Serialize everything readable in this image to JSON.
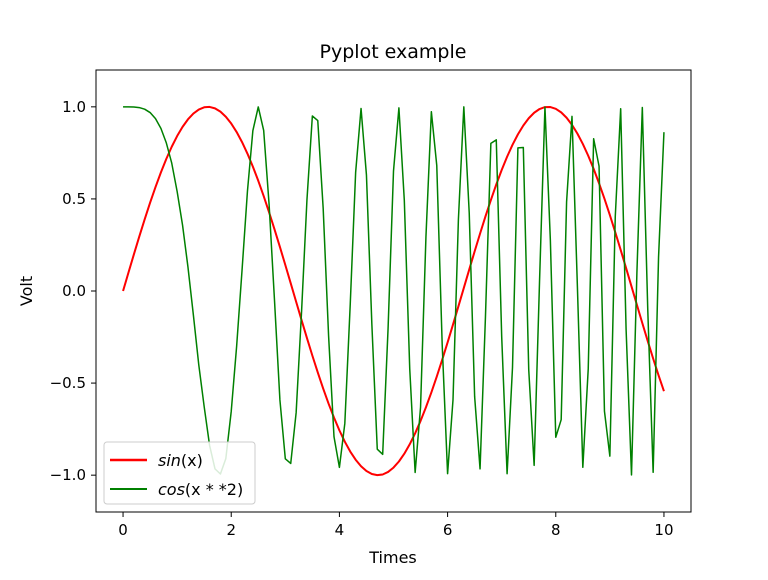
{
  "chart_data": {
    "type": "line",
    "title": "Pyplot example",
    "xlabel": "Times",
    "ylabel": "Volt",
    "xlim": [
      -0.5,
      10.5
    ],
    "ylim": [
      -1.2,
      1.2
    ],
    "x_ticks": [
      0,
      2,
      4,
      6,
      8,
      10
    ],
    "x_tick_labels": [
      "0",
      "2",
      "4",
      "6",
      "8",
      "10"
    ],
    "y_ticks": [
      -1.0,
      -0.5,
      0.0,
      0.5,
      1.0
    ],
    "y_tick_labels": [
      "−1.0",
      "−0.5",
      "0.0",
      "0.5",
      "1.0"
    ],
    "grid": false,
    "legend_position": "lower-left",
    "x": [
      0,
      0.1,
      0.2,
      0.3,
      0.4,
      0.5,
      0.6,
      0.7,
      0.8,
      0.9,
      1.0,
      1.1,
      1.2,
      1.3,
      1.4,
      1.5,
      1.6,
      1.7,
      1.8,
      1.9,
      2.0,
      2.1,
      2.2,
      2.3,
      2.4,
      2.5,
      2.6,
      2.7,
      2.8,
      2.9,
      3.0,
      3.1,
      3.2,
      3.3,
      3.4,
      3.5,
      3.6,
      3.7,
      3.8,
      3.9,
      4.0,
      4.1,
      4.2,
      4.3,
      4.4,
      4.5,
      4.6,
      4.7,
      4.8,
      4.9,
      5.0,
      5.1,
      5.2,
      5.3,
      5.4,
      5.5,
      5.6,
      5.7,
      5.8,
      5.9,
      6.0,
      6.1,
      6.2,
      6.3,
      6.4,
      6.5,
      6.6,
      6.7,
      6.8,
      6.9,
      7.0,
      7.1,
      7.2,
      7.3,
      7.4,
      7.5,
      7.6,
      7.7,
      7.8,
      7.9,
      8.0,
      8.1,
      8.2,
      8.3,
      8.4,
      8.5,
      8.6,
      8.7,
      8.8,
      8.9,
      9.0,
      9.1,
      9.2,
      9.3,
      9.4,
      9.5,
      9.6,
      9.7,
      9.8,
      9.9,
      10.0
    ],
    "series": [
      {
        "name": "sin(x)",
        "color": "#ff0000",
        "line_width": 2,
        "values": [
          0.0,
          0.0998,
          0.1987,
          0.2955,
          0.3894,
          0.4794,
          0.5646,
          0.6442,
          0.7174,
          0.7833,
          0.8415,
          0.8912,
          0.932,
          0.9636,
          0.9854,
          0.9975,
          0.9996,
          0.9917,
          0.9738,
          0.9463,
          0.9093,
          0.8632,
          0.8085,
          0.7457,
          0.6755,
          0.5985,
          0.5155,
          0.4274,
          0.335,
          0.2392,
          0.1411,
          0.0416,
          -0.0584,
          -0.1577,
          -0.2555,
          -0.3508,
          -0.4425,
          -0.5298,
          -0.6119,
          -0.6878,
          -0.7568,
          -0.8183,
          -0.8716,
          -0.9162,
          -0.9516,
          -0.9775,
          -0.9937,
          -0.9999,
          -0.9962,
          -0.9825,
          -0.9589,
          -0.9258,
          -0.8835,
          -0.8323,
          -0.7728,
          -0.7055,
          -0.6313,
          -0.5507,
          -0.4646,
          -0.3739,
          -0.2794,
          -0.1822,
          -0.0831,
          0.0168,
          0.1165,
          0.2151,
          0.3115,
          0.4048,
          0.494,
          0.5784,
          0.657,
          0.729,
          0.7937,
          0.8504,
          0.8987,
          0.938,
          0.9679,
          0.9882,
          0.9985,
          0.9989,
          0.9894,
          0.9699,
          0.9407,
          0.9022,
          0.8546,
          0.7985,
          0.7344,
          0.663,
          0.5849,
          0.501,
          0.4121,
          0.319,
          0.2229,
          0.1245,
          0.0248,
          -0.0752,
          -0.1743,
          -0.2718,
          -0.3665,
          -0.4575,
          -0.544
        ]
      },
      {
        "name": "cos(x**2)",
        "color": "#008000",
        "line_width": 1.5,
        "values": [
          1.0,
          1.0,
          0.9992,
          0.996,
          0.9872,
          0.9689,
          0.9359,
          0.8829,
          0.8041,
          0.6945,
          0.5403,
          0.3576,
          0.1304,
          -0.1296,
          -0.4007,
          -0.6282,
          -0.8383,
          -0.9659,
          -0.9936,
          -0.9104,
          -0.6536,
          -0.2995,
          0.1136,
          0.5421,
          0.8706,
          0.9994,
          0.8718,
          0.4706,
          -0.0504,
          -0.5917,
          -0.9111,
          -0.9365,
          -0.6609,
          -0.1129,
          0.4949,
          0.9502,
          0.9253,
          0.4484,
          -0.2434,
          -0.7916,
          -0.9577,
          -0.7193,
          -0.0728,
          0.6445,
          0.9912,
          0.6294,
          -0.1812,
          -0.8588,
          -0.8867,
          -0.2011,
          0.6511,
          0.9942,
          0.491,
          -0.4215,
          -0.9855,
          -0.6306,
          0.2957,
          0.9734,
          0.6812,
          -0.2895,
          -0.9918,
          -0.5918,
          0.3896,
          0.9999,
          0.4234,
          -0.5734,
          -0.9659,
          -0.1403,
          0.8018,
          0.8208,
          -0.2453,
          -0.9921,
          -0.4155,
          0.7774,
          0.7794,
          -0.4269,
          -0.9468,
          0.0553,
          0.9987,
          0.2764,
          -0.7942,
          -0.6988,
          0.4844,
          0.9483,
          0.0213,
          -0.9573,
          -0.4233,
          0.8269,
          0.6781,
          -0.6524,
          -0.8968,
          0.4045,
          0.9898,
          -0.2079,
          -0.9987,
          0.1003,
          0.9963,
          -0.0957,
          -0.9845,
          0.1836,
          0.8623
        ]
      }
    ],
    "legend": [
      {
        "label_text": "sin",
        "label_args": "(x)",
        "color": "#ff0000"
      },
      {
        "label_text": "cos",
        "label_args": "(x * *2)",
        "color": "#008000"
      }
    ]
  }
}
